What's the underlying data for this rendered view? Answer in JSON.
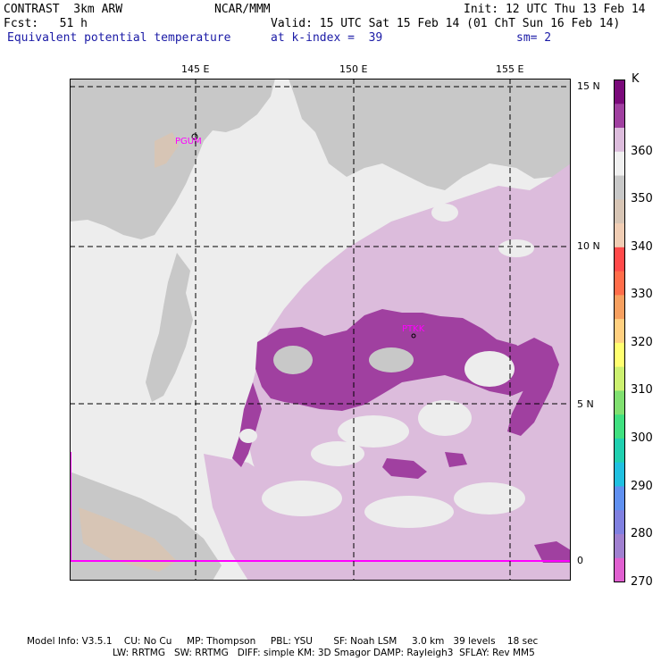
{
  "header": {
    "model": "CONTRAST  3km ARW",
    "org": "NCAR/MMM",
    "init": "Init: 12 UTC Thu 13 Feb 14",
    "fcst": "Fcst:   51 h",
    "valid": "Valid: 15 UTC Sat 15 Feb 14 (01 ChT Sun 16 Feb 14)",
    "field": "Equivalent potential temperature",
    "level": "at k-index =  39",
    "smooth": "sm= 2"
  },
  "map": {
    "lon_labels": [
      "145 E",
      "150 E",
      "155 E"
    ],
    "lat_labels": [
      "15 N",
      "10 N",
      "5 N",
      "0"
    ],
    "station_labels": [
      "PGUM",
      "PTKK"
    ],
    "colors": {
      "land_fill": "#c8c8c8",
      "background": "#ededed",
      "light_purple": "#dcbcdc",
      "dark_purple": "#a040a0",
      "domain_line": "#ff00ff"
    }
  },
  "colorbar": {
    "unit": "K",
    "labels": [
      "360",
      "350",
      "340",
      "330",
      "320",
      "310",
      "300",
      "290",
      "280",
      "270"
    ],
    "colors": [
      "#7a0a7a",
      "#a040a0",
      "#dcbcdc",
      "#f0f0f0",
      "#c8c8c8",
      "#d7c5b5",
      "#f0cdb4",
      "#ff4a4a",
      "#ff6d4a",
      "#f7a060",
      "#ffd080",
      "#ffff70",
      "#ccf070",
      "#80e070",
      "#40e080",
      "#20d0b0",
      "#20c0e0",
      "#6090f0",
      "#8080e0",
      "#a080d0",
      "#e060d0"
    ]
  },
  "model_info": {
    "line1": "Model Info: V3.5.1    CU: No Cu     MP: Thompson     PBL: YSU       SF: Noah LSM     3.0 km   39 levels    18 sec",
    "line2": "LW: RRTMG   SW: RRTMG   DIFF: simple KM: 3D Smagor DAMP: Rayleigh3  SFLAY: Rev MM5"
  }
}
